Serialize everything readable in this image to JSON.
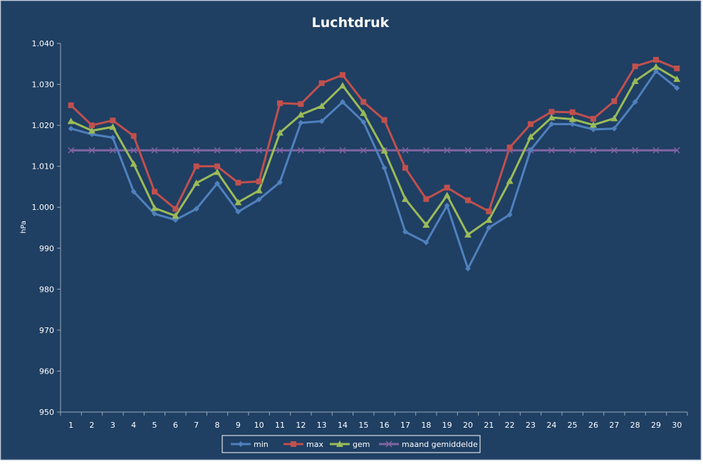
{
  "chart_data": {
    "type": "line",
    "title": "Luchtdruk",
    "ylabel": "hPa",
    "xlabel": "",
    "ylim": [
      950,
      1040
    ],
    "y_ticks": [
      "950",
      "960",
      "970",
      "980",
      "990",
      "1.000",
      "1.010",
      "1.020",
      "1.030",
      "1.040"
    ],
    "y_tick_values": [
      950,
      960,
      970,
      980,
      990,
      1000,
      1010,
      1020,
      1030,
      1040
    ],
    "categories": [
      "1",
      "2",
      "3",
      "4",
      "5",
      "6",
      "7",
      "8",
      "9",
      "10",
      "11",
      "12",
      "13",
      "14",
      "15",
      "16",
      "17",
      "18",
      "19",
      "20",
      "21",
      "22",
      "23",
      "24",
      "25",
      "26",
      "27",
      "28",
      "29",
      "30"
    ],
    "grid": false,
    "legend_position": "bottom",
    "background_color": "#1f3f63",
    "series": [
      {
        "name": "min",
        "color": "#4f81bd",
        "marker": "diamond",
        "values": [
          1019.2,
          1017.8,
          1017.0,
          1003.8,
          998.4,
          996.9,
          999.6,
          1005.8,
          998.9,
          1001.9,
          1006.1,
          1020.6,
          1021.0,
          1025.7,
          1020.8,
          1009.6,
          994.0,
          991.4,
          1000.4,
          985.0,
          995.0,
          998.2,
          1014.0,
          1020.3,
          1020.3,
          1019.0,
          1019.2,
          1025.7,
          1033.2,
          1029.1
        ]
      },
      {
        "name": "max",
        "color": "#c0504d",
        "marker": "square",
        "values": [
          1024.9,
          1020.0,
          1021.2,
          1017.4,
          1003.8,
          999.6,
          1010.0,
          1010.0,
          1006.0,
          1006.3,
          1025.4,
          1025.2,
          1030.3,
          1032.3,
          1025.7,
          1021.3,
          1009.6,
          1002.0,
          1004.8,
          1001.7,
          999.0,
          1014.6,
          1020.3,
          1023.3,
          1023.2,
          1021.6,
          1025.9,
          1034.4,
          1036.0,
          1033.9
        ]
      },
      {
        "name": "gem",
        "color": "#9bbb59",
        "marker": "triangle",
        "values": [
          1021.0,
          1018.7,
          1019.6,
          1010.6,
          999.8,
          997.9,
          1005.9,
          1008.6,
          1001.2,
          1004.1,
          1018.2,
          1022.6,
          1024.7,
          1029.7,
          1023.0,
          1013.8,
          1002.0,
          995.7,
          1002.9,
          993.3,
          996.9,
          1006.4,
          1017.2,
          1021.9,
          1021.5,
          1020.1,
          1021.7,
          1030.8,
          1034.3,
          1031.3
        ]
      },
      {
        "name": "maand gemiddelde",
        "color": "#8064a2",
        "marker": "cross",
        "values": [
          1013.9,
          1013.9,
          1013.9,
          1013.9,
          1013.9,
          1013.9,
          1013.9,
          1013.9,
          1013.9,
          1013.9,
          1013.9,
          1013.9,
          1013.9,
          1013.9,
          1013.9,
          1013.9,
          1013.9,
          1013.9,
          1013.9,
          1013.9,
          1013.9,
          1013.9,
          1013.9,
          1013.9,
          1013.9,
          1013.9,
          1013.9,
          1013.9,
          1013.9,
          1013.9
        ]
      }
    ]
  }
}
